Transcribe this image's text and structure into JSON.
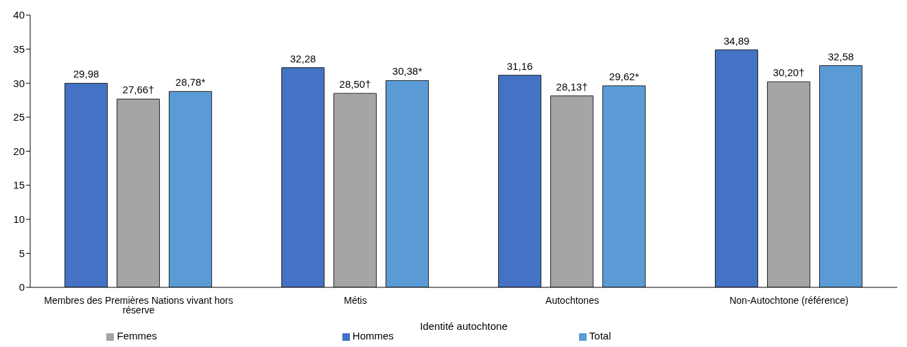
{
  "chart_data": {
    "type": "bar",
    "xlabel": "Identité autochtone",
    "categories": [
      "Membres des Premières Nations vivant hors réserve",
      "Métis",
      "Autochtones",
      "Non-Autochtone (référence)"
    ],
    "series": [
      {
        "name": "Hommes",
        "color": "#4472c4",
        "values": [
          29.98,
          32.28,
          31.16,
          34.89
        ],
        "value_labels": [
          "29,98",
          "32,28",
          "31,16",
          "34,89"
        ]
      },
      {
        "name": "Femmes",
        "color": "#a5a5a5",
        "values": [
          27.66,
          28.5,
          28.13,
          30.2
        ],
        "value_labels": [
          "27,66†",
          "28,50†",
          "28,13†",
          "30,20†"
        ]
      },
      {
        "name": "Total",
        "color": "#5b9bd5",
        "values": [
          28.78,
          30.38,
          29.62,
          32.58
        ],
        "value_labels": [
          "28,78*",
          "30,38*",
          "29,62*",
          "32,58"
        ]
      }
    ],
    "ylim": [
      0,
      40
    ],
    "yticks": [
      0,
      5,
      10,
      15,
      20,
      25,
      30,
      35,
      40
    ],
    "grid": false,
    "legend": "bottom"
  }
}
